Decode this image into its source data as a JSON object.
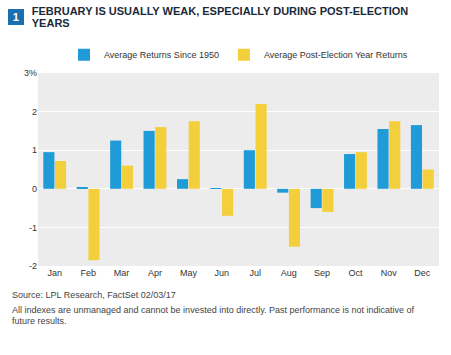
{
  "chart_data": {
    "type": "bar",
    "number": "1",
    "title": "FEBRUARY IS USUALLY WEAK, ESPECIALLY DURING POST-ELECTION YEARS",
    "categories": [
      "Jan",
      "Feb",
      "Mar",
      "Apr",
      "May",
      "Jun",
      "Jul",
      "Aug",
      "Sep",
      "Oct",
      "Nov",
      "Dec"
    ],
    "series": [
      {
        "name": "Average Returns Since 1950",
        "color": "#1f9bd7",
        "values": [
          0.95,
          0.03,
          1.25,
          1.5,
          0.25,
          0.02,
          1.0,
          -0.1,
          -0.5,
          0.9,
          1.55,
          1.65
        ]
      },
      {
        "name": "Average Post-Election Year Returns",
        "color": "#f3cf3c",
        "values": [
          0.72,
          -1.85,
          0.6,
          1.6,
          1.75,
          -0.7,
          2.2,
          -1.5,
          -0.6,
          0.95,
          1.75,
          0.5
        ]
      }
    ],
    "ylim": [
      -2,
      3
    ],
    "yticks": [
      -2,
      -1,
      0,
      1,
      2,
      {
        "value": 3,
        "label": "3%"
      }
    ],
    "grid": true,
    "legend": "top",
    "source": "Source: LPL Research, FactSet 02/03/17",
    "note": "All indexes are unmanaged and cannot be invested into directly. Past performance is not indicative of future results."
  }
}
